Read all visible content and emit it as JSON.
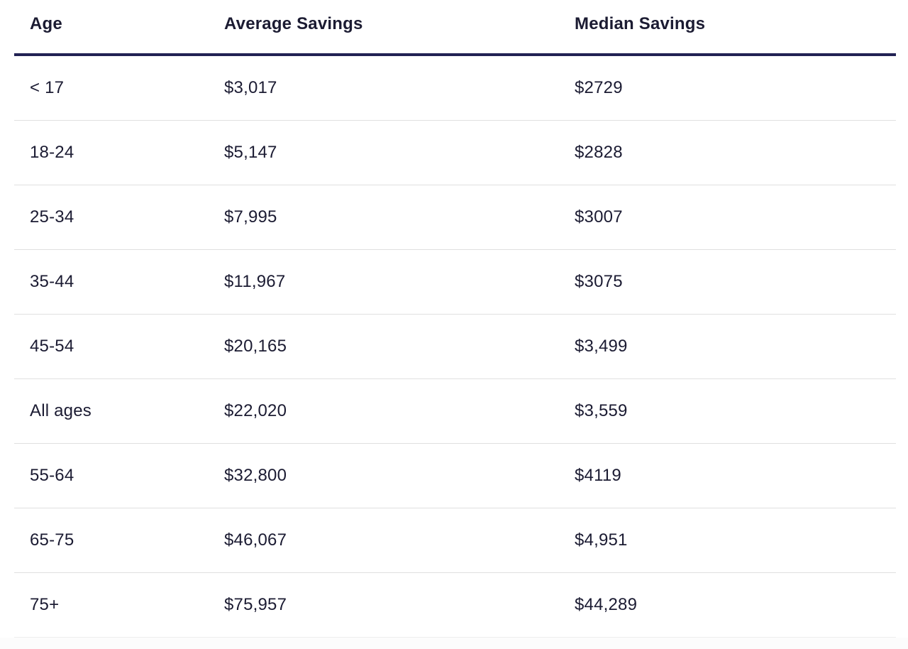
{
  "table": {
    "columns": {
      "age": "Age",
      "average": "Average Savings",
      "median": "Median Savings"
    },
    "rows": [
      {
        "age": "< 17",
        "average": "$3,017",
        "median": "$2729"
      },
      {
        "age": "18-24",
        "average": "$5,147",
        "median": "$2828"
      },
      {
        "age": "25-34",
        "average": "$7,995",
        "median": "$3007"
      },
      {
        "age": "35-44",
        "average": "$11,967",
        "median": "$3075"
      },
      {
        "age": "45-54",
        "average": "$20,165",
        "median": "$3,499"
      },
      {
        "age": "All ages",
        "average": "$22,020",
        "median": "$3,559"
      },
      {
        "age": "55-64",
        "average": "$32,800",
        "median": "$4119"
      },
      {
        "age": "65-75",
        "average": "$46,067",
        "median": "$4,951"
      },
      {
        "age": "75+",
        "average": "$75,957",
        "median": "$44,289"
      }
    ]
  },
  "colors": {
    "text": "#1b1b32",
    "header_border": "#222254",
    "row_separator": "#e0e0e0",
    "footer_strip_background": "#fcfcfc"
  },
  "chart_data": {
    "type": "table",
    "title": "",
    "columns": [
      "Age",
      "Average Savings",
      "Median Savings"
    ],
    "rows": [
      [
        "< 17",
        3017,
        2729
      ],
      [
        "18-24",
        5147,
        2828
      ],
      [
        "25-34",
        7995,
        3007
      ],
      [
        "35-44",
        11967,
        3075
      ],
      [
        "45-54",
        20165,
        3499
      ],
      [
        "All ages",
        22020,
        3559
      ],
      [
        "55-64",
        32800,
        4119
      ],
      [
        "65-75",
        46067,
        4951
      ],
      [
        "75+",
        75957,
        44289
      ]
    ],
    "layout_hints": {
      "header_underline": "thick dark navy",
      "row_separators": "thin light gray",
      "alignment": "left",
      "currency_display": [
        "as-is strings shown in table.rows"
      ]
    }
  }
}
